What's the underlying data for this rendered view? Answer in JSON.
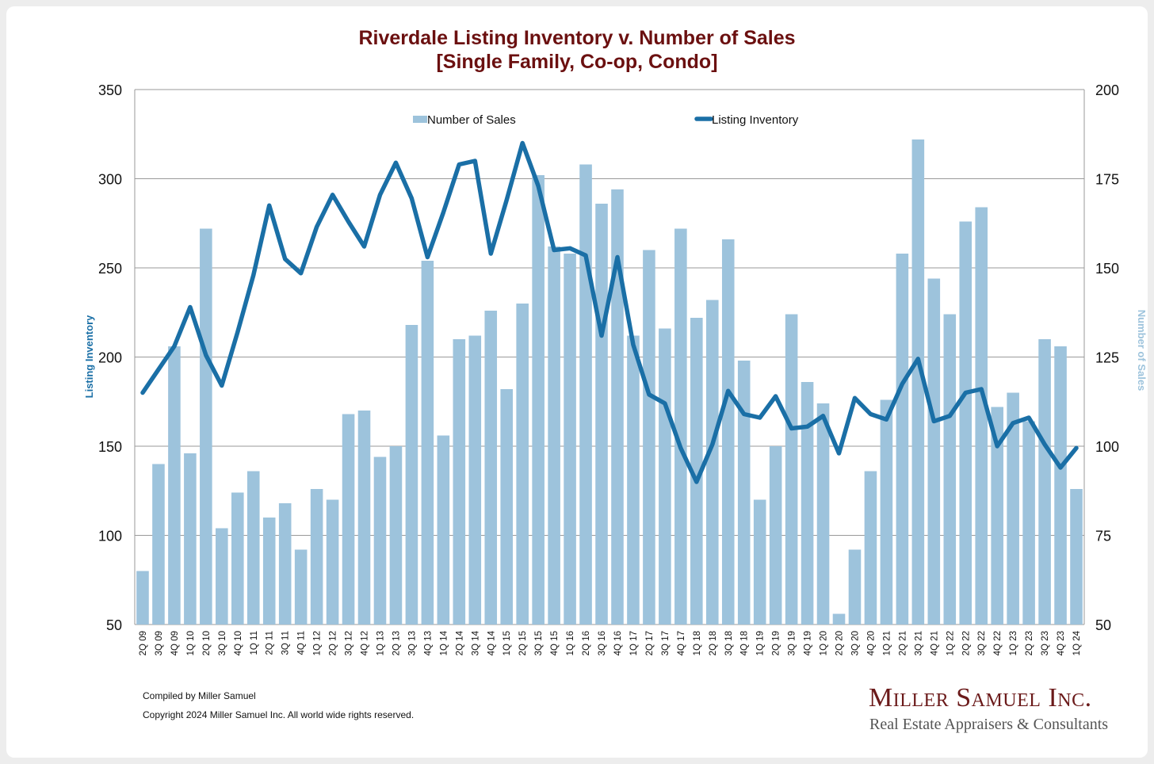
{
  "chart_data": {
    "type": "bar",
    "title_line1": "Riverdale Listing Inventory v. Number of Sales",
    "title_line2": "[Single Family, Co-op, Condo]",
    "ylabel_left": "Listing Inventory",
    "ylabel_right": "Number of Sales",
    "ylim_left": [
      50,
      350
    ],
    "yticks_left": [
      "50",
      "100",
      "150",
      "200",
      "250",
      "300",
      "350"
    ],
    "ylim_right": [
      50,
      200
    ],
    "yticks_right": [
      "50",
      "75",
      "100",
      "125",
      "150",
      "175",
      "200"
    ],
    "grid": true,
    "legend_position": "top",
    "categories": [
      "2Q 09",
      "3Q 09",
      "4Q 09",
      "1Q 10",
      "2Q 10",
      "3Q 10",
      "4Q 10",
      "1Q 11",
      "2Q 11",
      "3Q 11",
      "4Q 11",
      "1Q 12",
      "2Q 12",
      "3Q 12",
      "4Q 12",
      "1Q 13",
      "2Q 13",
      "3Q 13",
      "4Q 13",
      "1Q 14",
      "2Q 14",
      "3Q 14",
      "4Q 14",
      "1Q 15",
      "2Q 15",
      "3Q 15",
      "4Q 15",
      "1Q 16",
      "2Q 16",
      "3Q 16",
      "4Q 16",
      "1Q 17",
      "2Q 17",
      "3Q 17",
      "4Q 17",
      "1Q 18",
      "2Q 18",
      "3Q 18",
      "4Q 18",
      "1Q 19",
      "2Q 19",
      "3Q 19",
      "4Q 19",
      "1Q 20",
      "2Q 20",
      "3Q 20",
      "4Q 20",
      "1Q 21",
      "2Q 21",
      "3Q 21",
      "4Q 21",
      "1Q 22",
      "2Q 22",
      "3Q 22",
      "4Q 22",
      "1Q 23",
      "2Q 23",
      "3Q 23",
      "4Q 23",
      "1Q 24"
    ],
    "series": [
      {
        "name": "Number of Sales",
        "type": "bar",
        "axis": "right",
        "color": "#9dc3dc",
        "values": [
          65,
          95,
          128,
          98,
          161,
          77,
          87,
          93,
          80,
          84,
          71,
          88,
          85,
          109,
          110,
          97,
          100,
          134,
          152,
          103,
          130,
          131,
          138,
          116,
          140,
          176,
          156,
          154,
          179,
          168,
          172,
          131,
          155,
          133,
          161,
          136,
          141,
          158,
          124,
          85,
          100,
          137,
          118,
          112,
          53,
          71,
          93,
          113,
          154,
          186,
          147,
          137,
          163,
          167,
          111,
          115,
          107,
          130,
          128,
          88
        ]
      },
      {
        "name": "Listing Inventory",
        "type": "line",
        "axis": "left",
        "color": "#1a6fa6",
        "values": [
          180,
          193,
          206,
          228,
          201,
          184,
          214,
          246,
          285,
          255,
          247,
          273,
          291,
          276,
          262,
          291,
          309,
          289,
          256,
          281,
          308,
          310,
          258,
          288,
          320,
          296,
          260,
          261,
          257,
          212,
          256,
          207,
          179,
          174,
          149,
          130,
          151,
          181,
          168,
          166,
          178,
          160,
          161,
          167,
          146,
          177,
          168,
          165,
          185,
          199,
          164,
          167,
          180,
          182,
          150,
          163,
          166,
          151,
          138,
          149
        ]
      }
    ]
  },
  "footer": {
    "compiled": "Compiled by Miller Samuel",
    "copyright": "Copyright 2024 Miller Samuel Inc.  All world wide rights reserved."
  },
  "logo": {
    "name": "Miller Samuel Inc.",
    "tagline": "Real Estate Appraisers & Consultants"
  },
  "colors": {
    "title": "#6b1010",
    "bar": "#9dc3dc",
    "line": "#1a6fa6"
  }
}
